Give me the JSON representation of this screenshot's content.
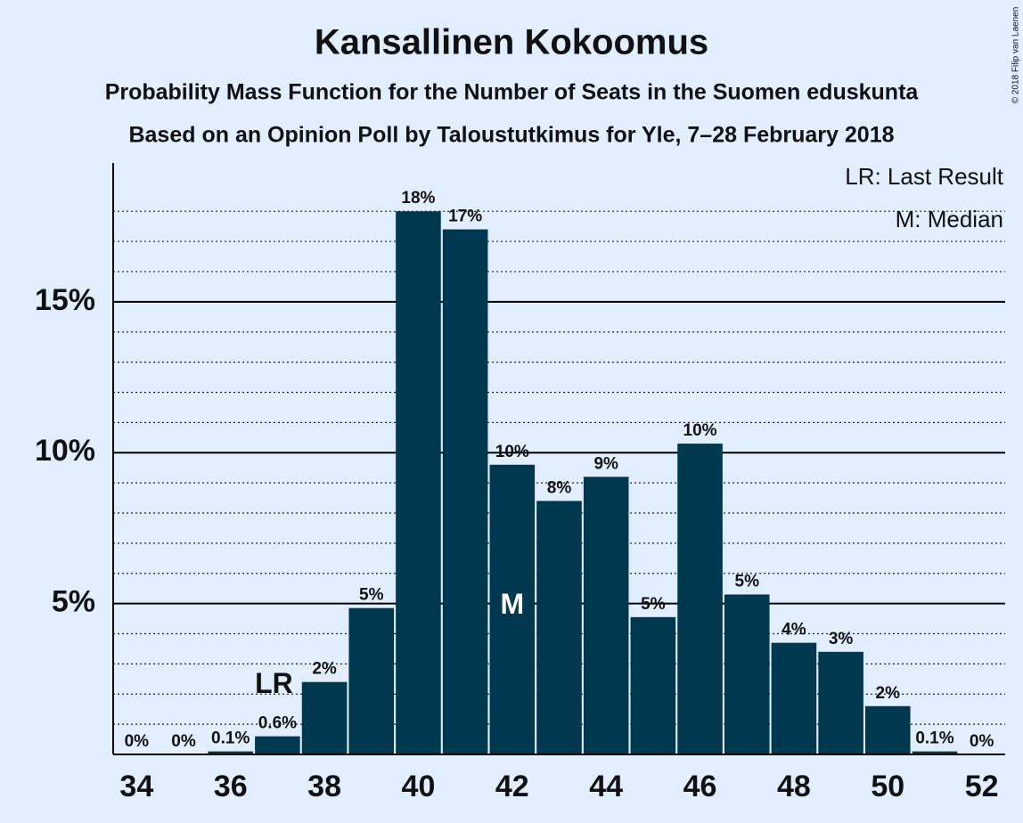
{
  "chart_data": {
    "type": "bar",
    "title": "Kansallinen Kokoomus",
    "subtitle": "Probability Mass Function for the Number of Seats in the Suomen eduskunta",
    "subtitle2": "Based on an Opinion Poll by Taloustutkimus for Yle, 7–28 February 2018",
    "copyright": "© 2018 Filip van Laenen",
    "legend": [
      "LR: Last Result",
      "M: Median"
    ],
    "annotations": [
      {
        "text": "LR",
        "x": 37
      },
      {
        "text": "M",
        "x": 42
      }
    ],
    "x": [
      34,
      35,
      36,
      37,
      38,
      39,
      40,
      41,
      42,
      43,
      44,
      45,
      46,
      47,
      48,
      49,
      50,
      51,
      52
    ],
    "values": [
      0,
      0,
      0.1,
      0.6,
      2.4,
      4.85,
      18,
      17.4,
      9.6,
      8.4,
      9.2,
      4.55,
      10.3,
      5.3,
      3.7,
      3.4,
      1.6,
      0.1,
      0
    ],
    "value_labels": [
      "0%",
      "0%",
      "0.1%",
      "0.6%",
      "2%",
      "5%",
      "18%",
      "17%",
      "10%",
      "8%",
      "9%",
      "5%",
      "10%",
      "5%",
      "4%",
      "3%",
      "2%",
      "0.1%",
      "0%"
    ],
    "color": "#00384f",
    "xlim": [
      33.5,
      52.5
    ],
    "xticks": [
      34,
      36,
      38,
      40,
      42,
      44,
      46,
      48,
      50,
      52
    ],
    "ylim": [
      0,
      19.6
    ],
    "yticks": [
      {
        "value": 5,
        "label": "5%"
      },
      {
        "value": 10,
        "label": "10%"
      },
      {
        "value": 15,
        "label": "15%"
      }
    ],
    "minor_yticks": [
      1,
      2,
      3,
      4,
      6,
      7,
      8,
      9,
      11,
      12,
      13,
      14,
      16,
      17,
      18
    ],
    "grid": true
  }
}
